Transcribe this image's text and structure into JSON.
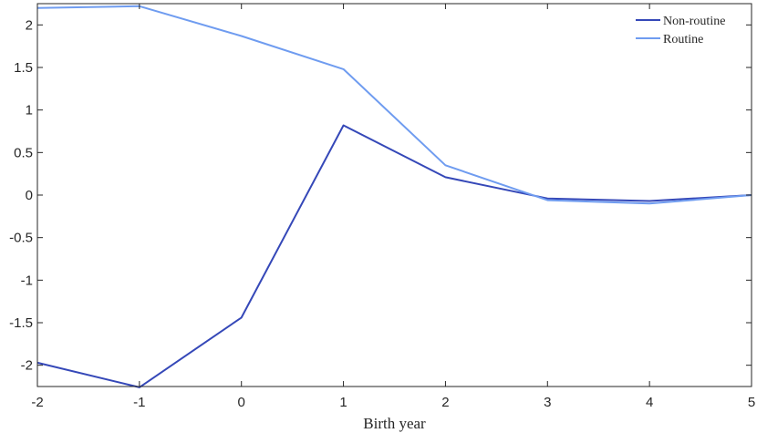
{
  "chart_data": {
    "type": "line",
    "title": "",
    "xlabel": "Birth year",
    "ylabel": "",
    "x": [
      -2,
      -1,
      0,
      1,
      2,
      3,
      4,
      5
    ],
    "xlim": [
      -2,
      5
    ],
    "ylim": [
      -2.25,
      2.25
    ],
    "xticks": [
      "-2",
      "-1",
      "0",
      "1",
      "2",
      "3",
      "4",
      "5"
    ],
    "yticks": [
      "-2",
      "-1.5",
      "-1",
      "-0.5",
      "0",
      "0.5",
      "1",
      "1.5",
      "2"
    ],
    "ytick_values": [
      -2,
      -1.5,
      -1,
      -0.5,
      0,
      0.5,
      1,
      1.5,
      2
    ],
    "grid": false,
    "legend_position": "top-right",
    "series": [
      {
        "name": "Non-routine",
        "color": "#3548b8",
        "values": [
          -1.97,
          -2.26,
          -1.44,
          0.82,
          0.21,
          -0.04,
          -0.07,
          0.0
        ]
      },
      {
        "name": "Routine",
        "color": "#6f9cf0",
        "values": [
          2.2,
          2.22,
          1.87,
          1.48,
          0.35,
          -0.06,
          -0.1,
          0.0
        ]
      }
    ]
  }
}
